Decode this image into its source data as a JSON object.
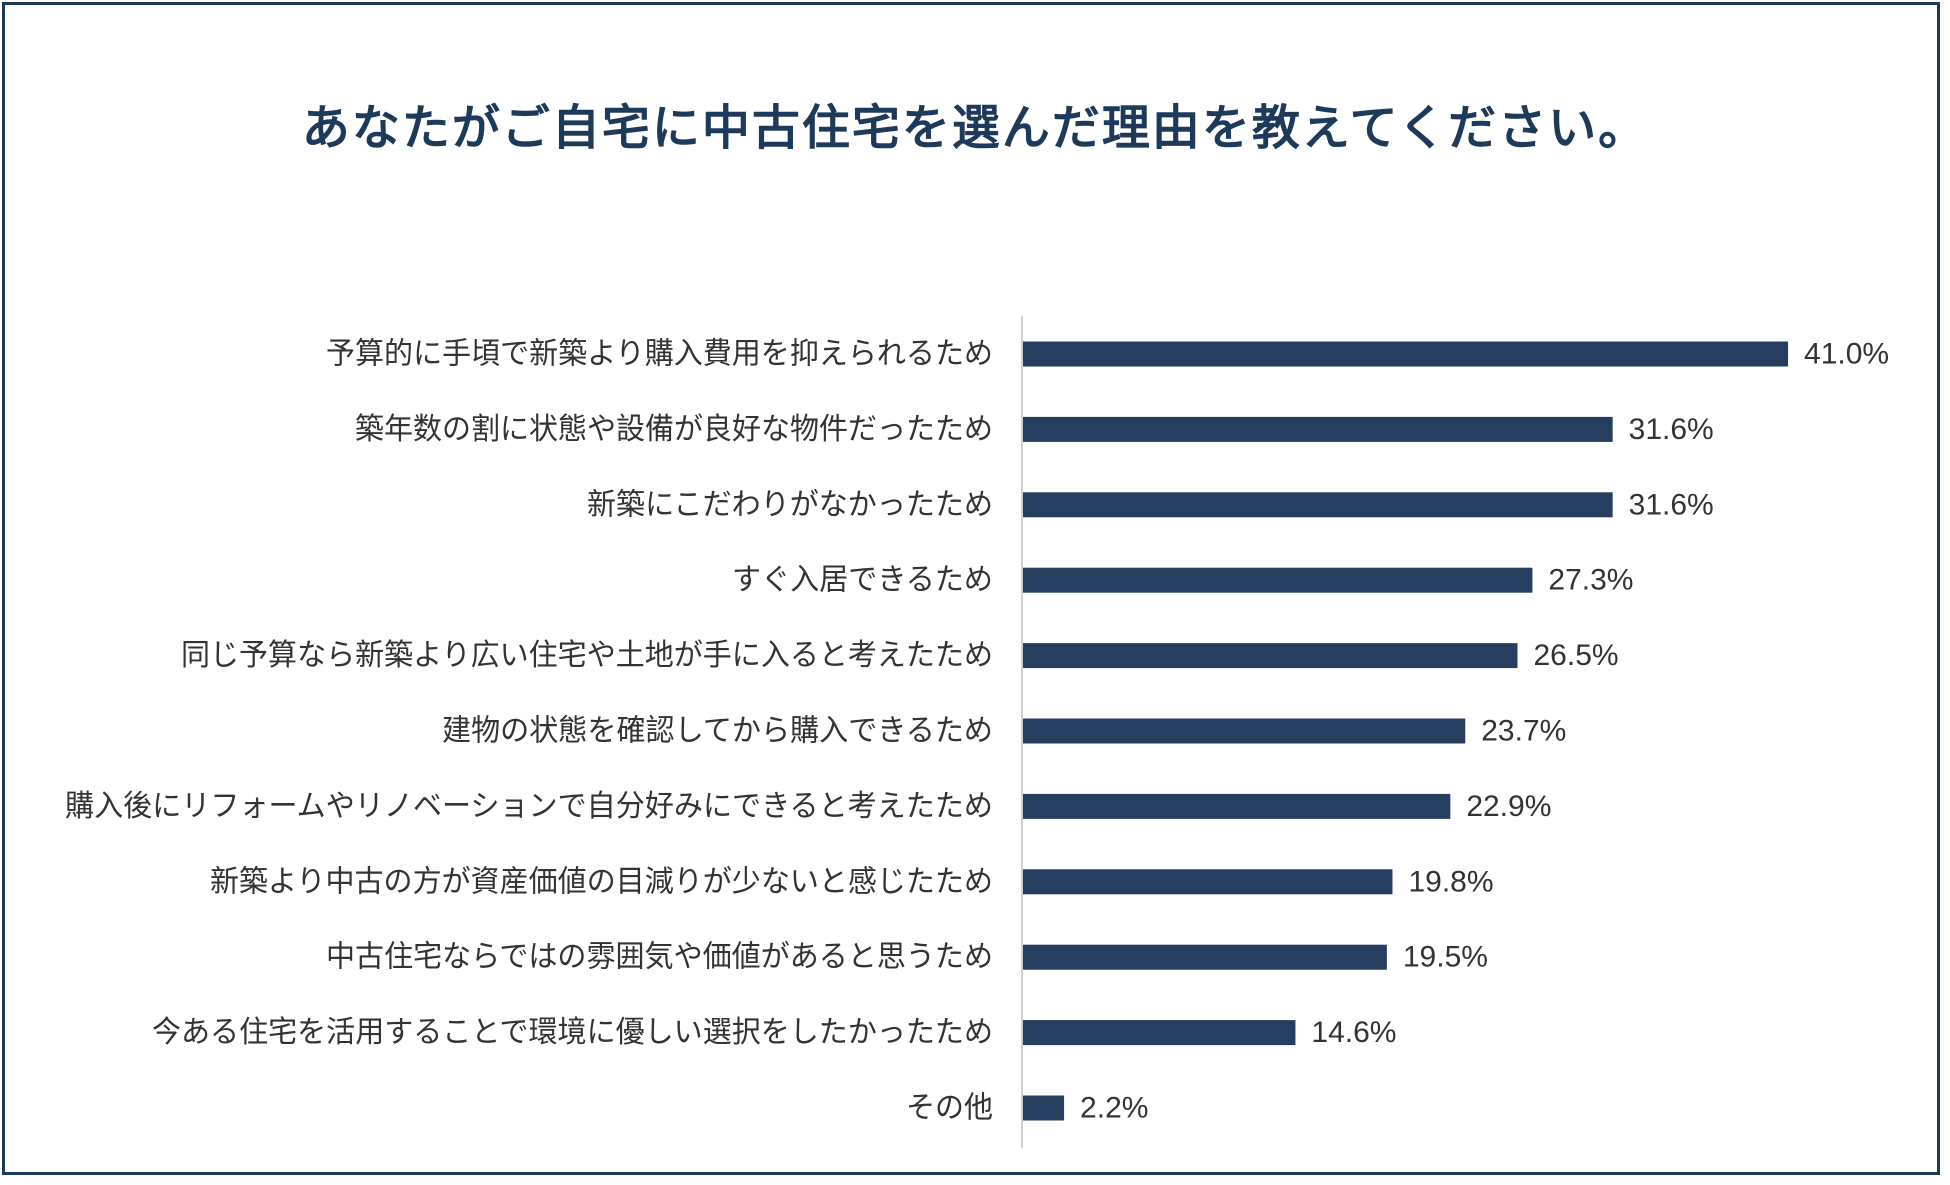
{
  "chart_data": {
    "type": "bar",
    "orientation": "horizontal",
    "title": "あなたがご自宅に中古住宅を選んだ理由を教えてください。",
    "categories": [
      "予算的に手頃で新築より購入費用を抑えられるため",
      "築年数の割に状態や設備が良好な物件だったため",
      "新築にこだわりがなかったため",
      "すぐ入居できるため",
      "同じ予算なら新築より広い住宅や土地が手に入ると考えたため",
      "建物の状態を確認してから購入できるため",
      "購入後にリフォームやリノベーションで自分好みにできると考えたため",
      "新築より中古の方が資産価値の目減りが少ないと感じたため",
      "中古住宅ならではの雰囲気や価値があると思うため",
      "今ある住宅を活用することで環境に優しい選択をしたかったため",
      "その他"
    ],
    "values": [
      41.0,
      31.6,
      31.6,
      27.3,
      26.5,
      23.7,
      22.9,
      19.8,
      19.5,
      14.6,
      2.2
    ],
    "value_labels": [
      "41.0%",
      "31.6%",
      "31.6%",
      "27.3%",
      "26.5%",
      "23.7%",
      "22.9%",
      "19.8%",
      "19.5%",
      "14.6%",
      "2.2%"
    ],
    "xlim": [
      0,
      50
    ],
    "grid": false,
    "bar_color": "#253d5e",
    "axis_color": "#d0d0d0"
  }
}
